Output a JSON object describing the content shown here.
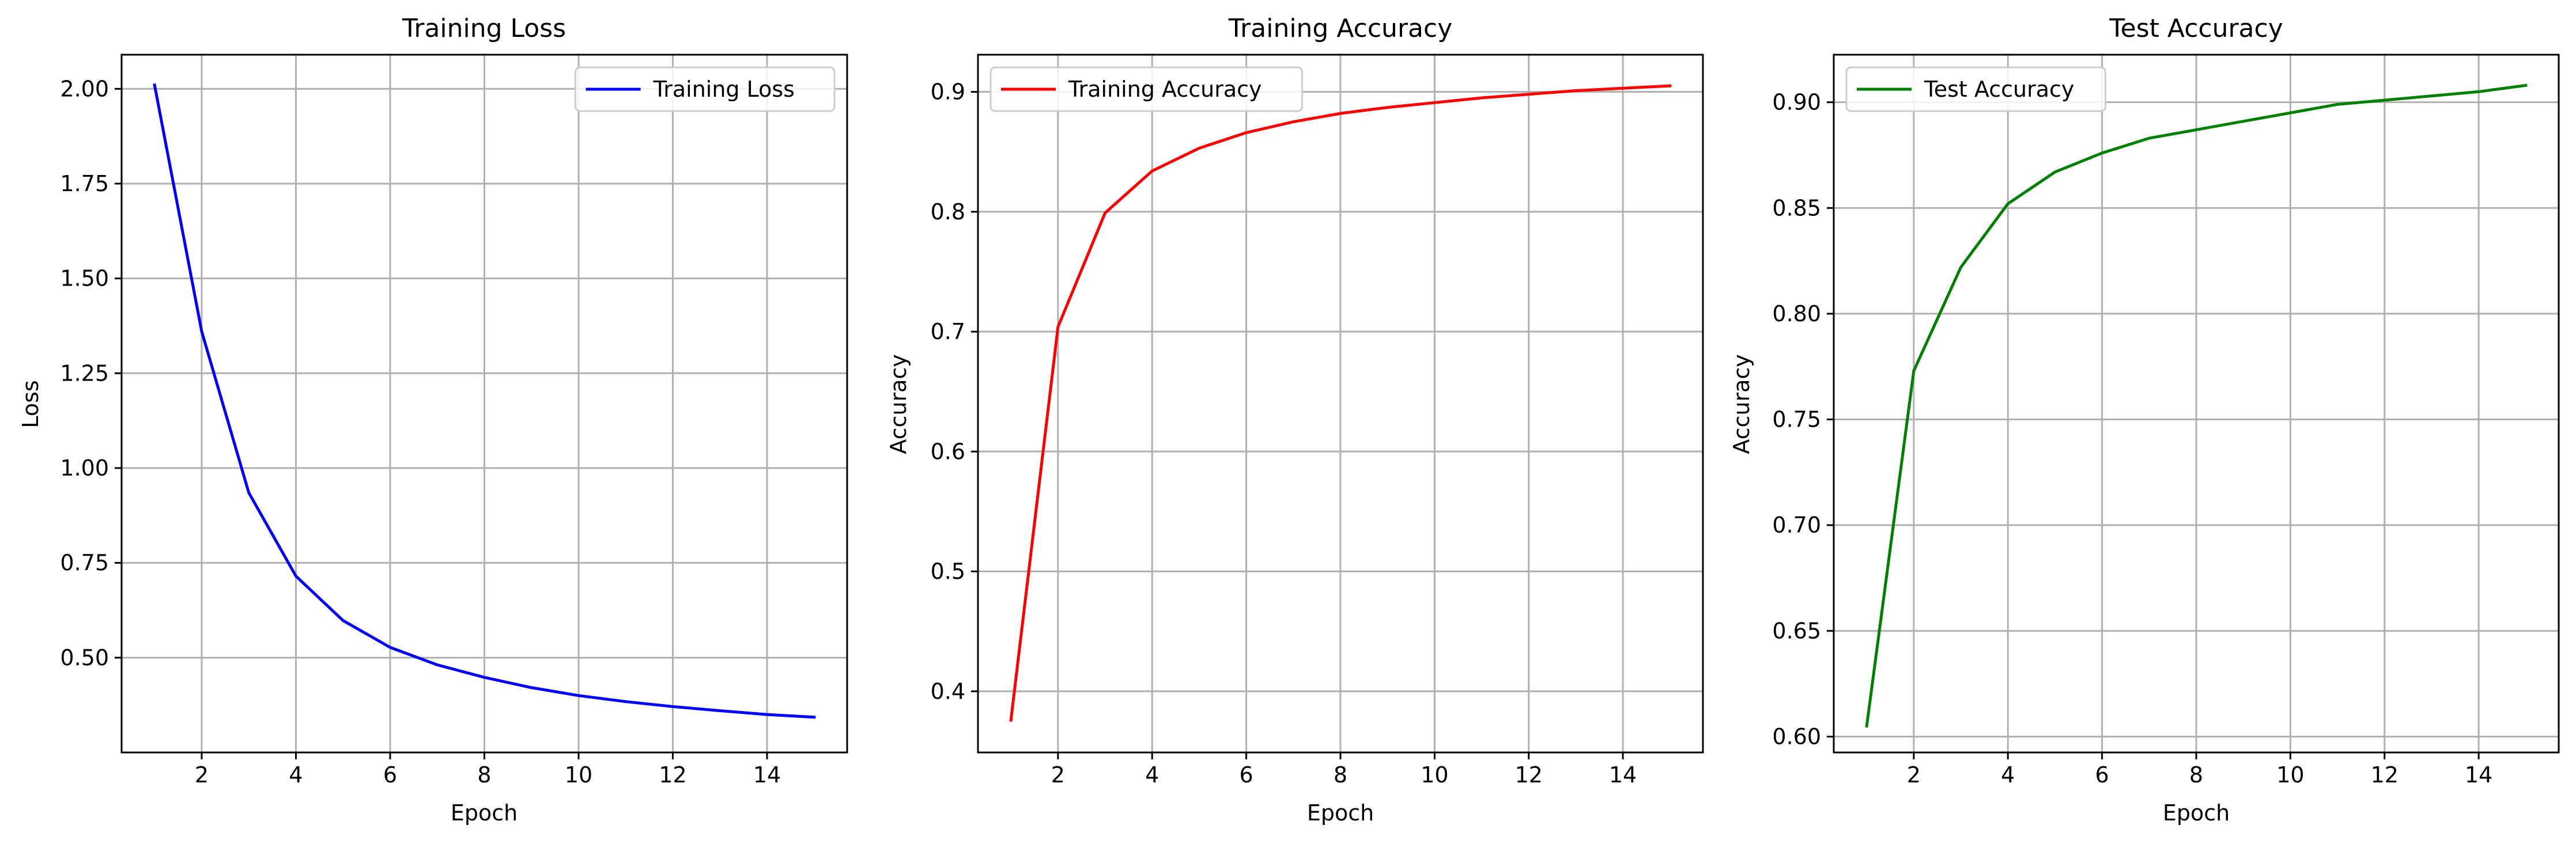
{
  "chart_data": [
    {
      "type": "line",
      "title": "Training Loss",
      "xlabel": "Epoch",
      "ylabel": "Loss",
      "xlim": [
        0.3,
        15.7
      ],
      "ylim": [
        0.25,
        2.09
      ],
      "xticks": [
        2,
        4,
        6,
        8,
        10,
        12,
        14
      ],
      "xtick_labels": [
        "2",
        "4",
        "6",
        "8",
        "10",
        "12",
        "14"
      ],
      "yticks": [
        0.5,
        0.75,
        1.0,
        1.25,
        1.5,
        1.75,
        2.0
      ],
      "ytick_labels": [
        "0.50",
        "0.75",
        "1.00",
        "1.25",
        "1.50",
        "1.75",
        "2.00"
      ],
      "grid": true,
      "legend_position": "top-right",
      "series": [
        {
          "name": "Training Loss",
          "color": "#0000ff",
          "x": [
            1,
            2,
            3,
            4,
            5,
            6,
            7,
            8,
            9,
            10,
            11,
            12,
            13,
            14,
            15
          ],
          "y": [
            2.01,
            1.36,
            0.935,
            0.715,
            0.598,
            0.527,
            0.481,
            0.448,
            0.421,
            0.4,
            0.384,
            0.371,
            0.36,
            0.35,
            0.343
          ]
        }
      ]
    },
    {
      "type": "line",
      "title": "Training Accuracy",
      "xlabel": "Epoch",
      "ylabel": "Accuracy",
      "xlim": [
        0.3,
        15.7
      ],
      "ylim": [
        0.349,
        0.931
      ],
      "xticks": [
        2,
        4,
        6,
        8,
        10,
        12,
        14
      ],
      "xtick_labels": [
        "2",
        "4",
        "6",
        "8",
        "10",
        "12",
        "14"
      ],
      "yticks": [
        0.4,
        0.5,
        0.6,
        0.7,
        0.8,
        0.9
      ],
      "ytick_labels": [
        "0.4",
        "0.5",
        "0.6",
        "0.7",
        "0.8",
        "0.9"
      ],
      "grid": true,
      "legend_position": "top-left",
      "series": [
        {
          "name": "Training Accuracy",
          "color": "#ff0000",
          "x": [
            1,
            2,
            3,
            4,
            5,
            6,
            7,
            8,
            9,
            10,
            11,
            12,
            13,
            14,
            15
          ],
          "y": [
            0.376,
            0.704,
            0.799,
            0.834,
            0.853,
            0.866,
            0.875,
            0.882,
            0.887,
            0.891,
            0.895,
            0.898,
            0.901,
            0.903,
            0.905
          ]
        }
      ]
    },
    {
      "type": "line",
      "title": "Test Accuracy",
      "xlabel": "Epoch",
      "ylabel": "Accuracy",
      "xlim": [
        0.3,
        15.7
      ],
      "ylim": [
        0.5925,
        0.9225
      ],
      "xticks": [
        2,
        4,
        6,
        8,
        10,
        12,
        14
      ],
      "xtick_labels": [
        "2",
        "4",
        "6",
        "8",
        "10",
        "12",
        "14"
      ],
      "yticks": [
        0.6,
        0.65,
        0.7,
        0.75,
        0.8,
        0.85,
        0.9
      ],
      "ytick_labels": [
        "0.60",
        "0.65",
        "0.70",
        "0.75",
        "0.80",
        "0.85",
        "0.90"
      ],
      "grid": true,
      "legend_position": "top-left",
      "series": [
        {
          "name": "Test Accuracy",
          "color": "#008000",
          "x": [
            1,
            2,
            3,
            4,
            5,
            6,
            7,
            8,
            9,
            10,
            11,
            12,
            13,
            14,
            15
          ],
          "y": [
            0.605,
            0.773,
            0.822,
            0.852,
            0.867,
            0.876,
            0.883,
            0.887,
            0.891,
            0.895,
            0.899,
            0.901,
            0.903,
            0.905,
            0.908
          ]
        }
      ]
    }
  ]
}
